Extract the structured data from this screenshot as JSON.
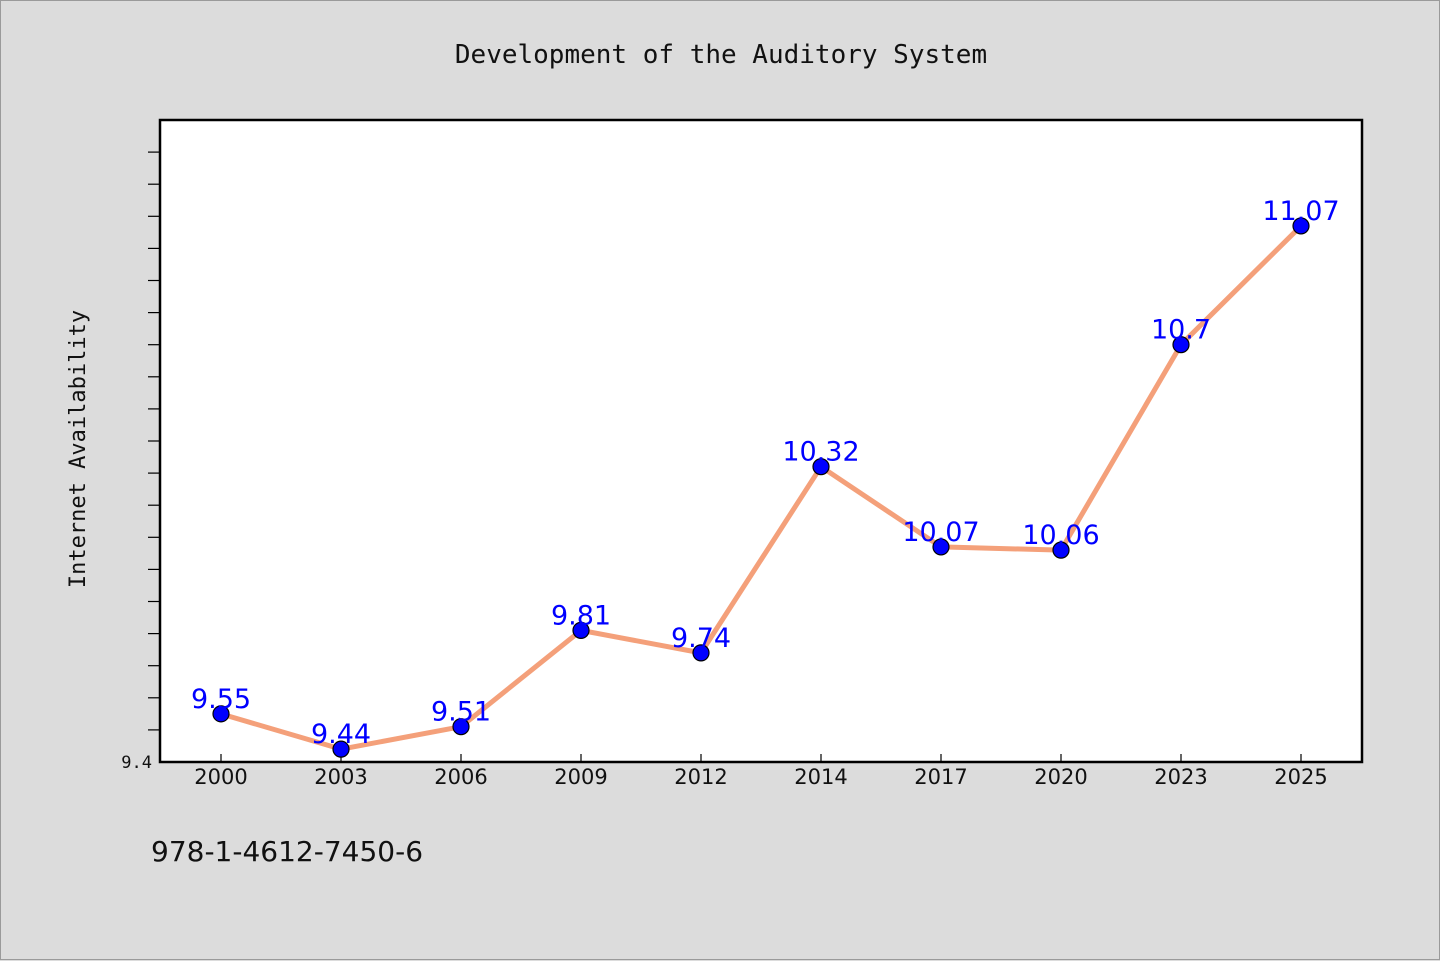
{
  "chart_data": {
    "type": "line",
    "title": "Development of the Auditory System",
    "xlabel": "",
    "ylabel": "Internet Availability",
    "categories": [
      "2000",
      "2003",
      "2006",
      "2009",
      "2012",
      "2014",
      "2017",
      "2020",
      "2023",
      "2025"
    ],
    "series": [
      {
        "values": [
          9.55,
          9.44,
          9.51,
          9.81,
          9.74,
          10.32,
          10.07,
          10.06,
          10.7,
          11.07
        ]
      }
    ],
    "data_labels": [
      "9.55",
      "9.44",
      "9.51",
      "9.81",
      "9.74",
      "10.32",
      "10.07",
      "10.06",
      "10.7",
      "11.07"
    ],
    "ylim": [
      9.4,
      11.4
    ],
    "ytick_labels": [
      "9.4"
    ],
    "grid": false,
    "colors": {
      "line": "#f4a07a",
      "marker": "#0000ff",
      "label": "#0000ff",
      "background": "#dcdcdc",
      "plot_background": "#ffffff"
    }
  },
  "footer": {
    "code": "978-1-4612-7450-6"
  }
}
